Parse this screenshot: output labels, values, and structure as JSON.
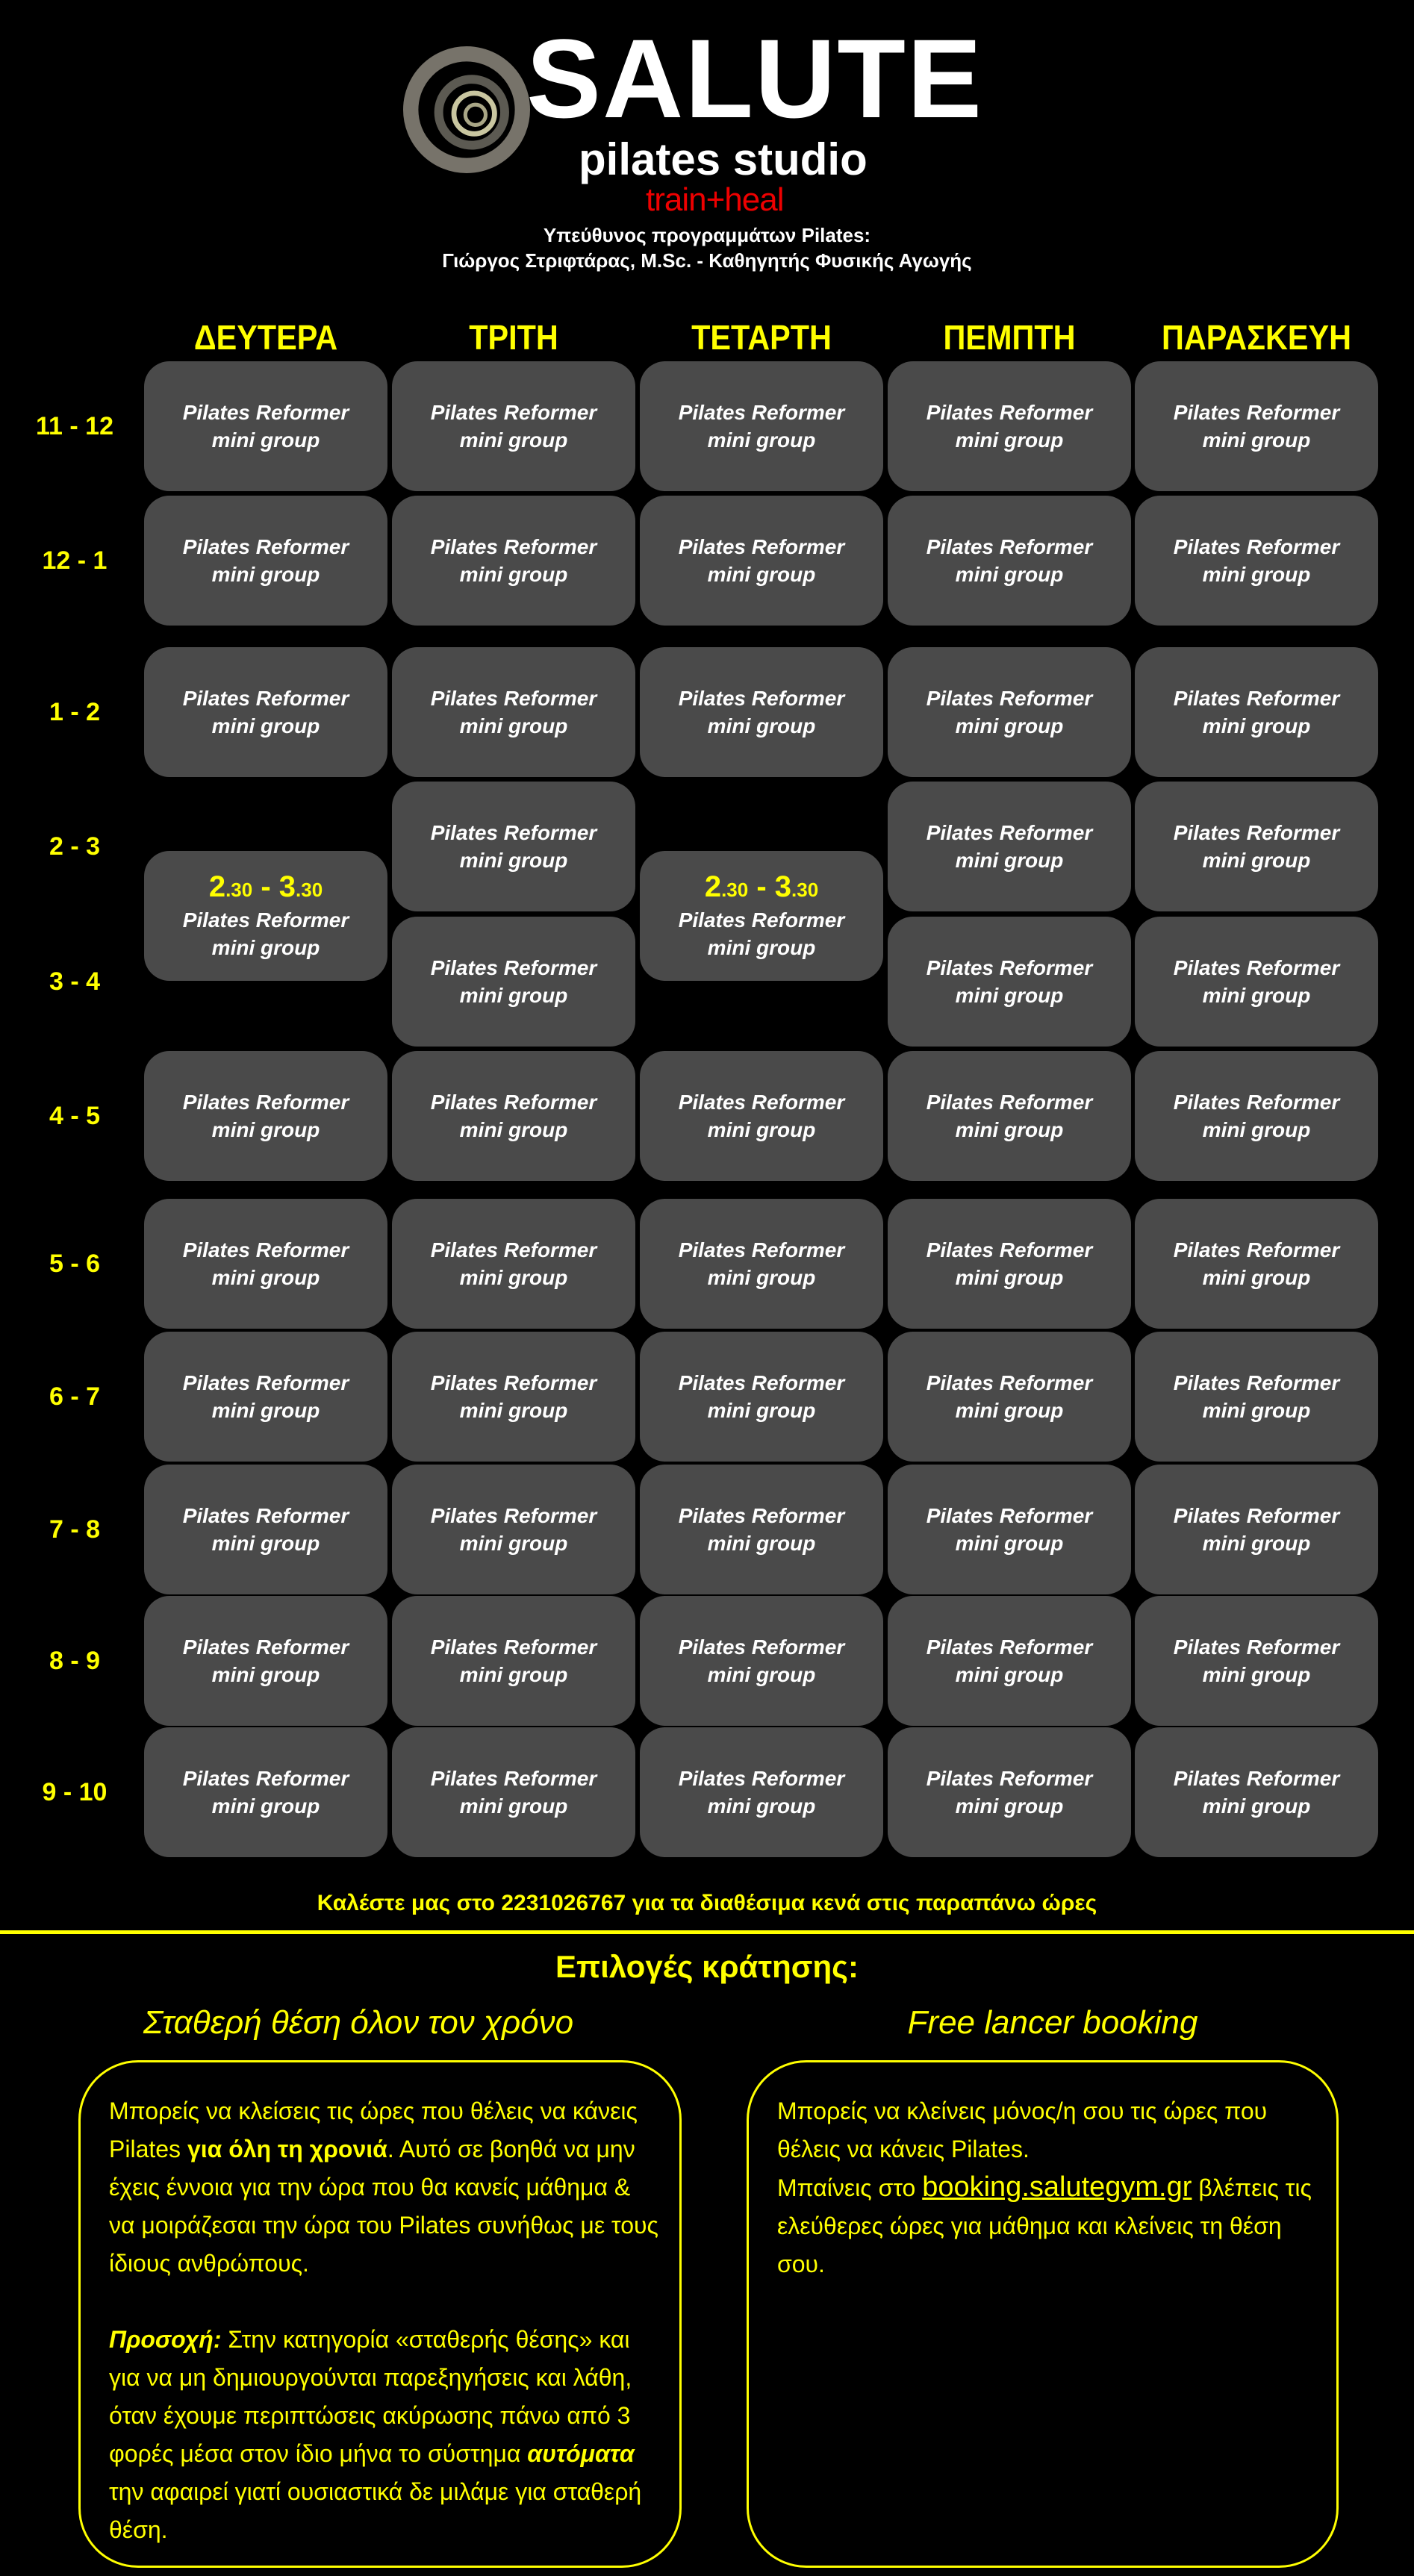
{
  "header": {
    "brand": "SALUTE",
    "subtitle": "pilates studio",
    "tagline": "train+heal",
    "tagline_color": "#e00000",
    "responsible_line1": "Υπεύθυνος προγραμμάτων Pilates:",
    "responsible_line2": "Γιώργος Στριφτάρας, M.Sc. - Καθηγητής Φυσικής Αγωγής"
  },
  "accent_color": "#ffff00",
  "days": [
    "ΔΕΥΤΕΡΑ",
    "ΤΡΙΤΗ",
    "ΤΕΤΑΡΤΗ",
    "ΠΕΜΠΤΗ",
    "ΠΑΡΑΣΚΕΥΗ"
  ],
  "times": [
    "11 - 12",
    "12 - 1",
    "1 - 2",
    "2 - 3",
    "3 - 4",
    "4 - 5",
    "5 - 6",
    "6 - 7",
    "7 - 8",
    "8 - 9",
    "9 - 10"
  ],
  "class": {
    "line1": "Pilates Reformer",
    "line2": "mini group"
  },
  "special_slot": {
    "start_h": "2",
    "start_m": ".30",
    "sep": " - ",
    "end_h": "3",
    "end_m": ".30",
    "days": [
      "ΔΕΥΤΕΡΑ",
      "ΤΕΤΑΡΤΗ"
    ]
  },
  "call_text": "Καλέστε μας στο 2231026767 για τα διαθέσιμα κενά στις παραπάνω ώρες",
  "booking": {
    "title": "Επιλογές κράτησης:",
    "fixed": {
      "heading": "Σταθερή θέση όλον τον χρόνο",
      "p1_a": "Μπορείς να κλείσεις τις ώρες που θέλεις να κάνεις Pilates ",
      "p1_bold": "για όλη τη χρονιά",
      "p1_b": ". Αυτό σε βοηθά να μην έχεις έννοια για την ώρα που θα κανείς μάθημα & να μοιράζεσαι την ώρα του Pilates συνήθως με τους ίδιους ανθρώπους.",
      "p2_label": "Προσοχή:",
      "p2_a": " Στην κατηγορία «σταθερής θέσης» και για να μη δημιουργούνται παρεξηγήσεις και λάθη, όταν έχουμε περιπτώσεις ακύρωσης πάνω από 3 φορές μέσα στον ίδιο μήνα το σύστημα ",
      "p2_bold": "αυτόματα",
      "p2_b": " την αφαιρεί γιατί ουσιαστικά δε μιλάμε για σταθερή θέση."
    },
    "free": {
      "heading": "Free lancer booking",
      "p1": "Μπορείς να κλείνεις μόνος/η σου τις ώρες που θέλεις να κάνεις Pilates.",
      "p2_a": "Μπαίνεις στο ",
      "link": "booking.salutegym.gr",
      "p2_b": " βλέπεις τις ελεύθερες ώρες για μάθημα και κλείνεις τη θέση σου."
    }
  }
}
